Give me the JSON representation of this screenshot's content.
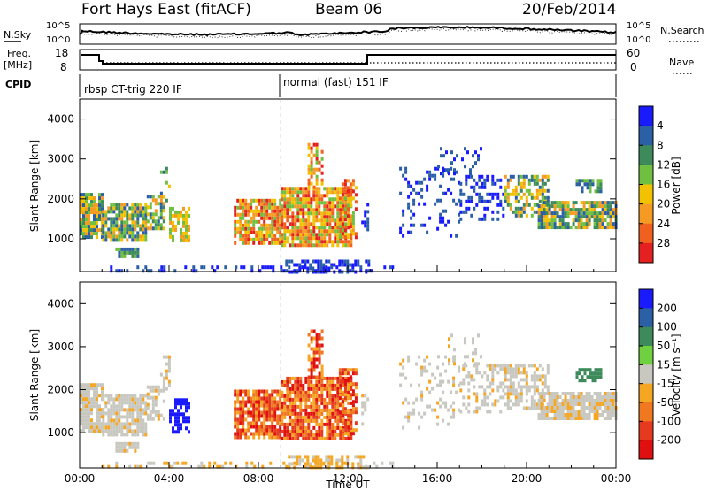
{
  "header": {
    "station": "Fort Hays East (fitACF)",
    "beam": "Beam 06",
    "date": "20/Feb/2014"
  },
  "noise_panel": {
    "left_label": "N.Sky",
    "left_ticks": [
      "10^5",
      "10^0"
    ],
    "right_label": "N.Search",
    "right_ticks": [
      "10^5",
      "10^0"
    ]
  },
  "freq_panel": {
    "left_label_1": "Freq.",
    "left_label_2": "[MHz]",
    "left_ticks": [
      "18",
      "8"
    ],
    "right_label": "Nave",
    "right_ticks": [
      "60",
      "0"
    ]
  },
  "cpid_panel": {
    "label": "CPID",
    "modes": [
      "rbsp CT-trig 220 IF",
      "normal (fast) 151 IF"
    ]
  },
  "chart_data": [
    {
      "type": "heatmap",
      "name": "power",
      "ylabel": "Slant Range [km]",
      "ylim": [
        180,
        4500
      ],
      "yticks": [
        1000,
        2000,
        3000,
        4000
      ],
      "xlim": [
        0,
        24
      ],
      "xticks": [
        "00:00",
        "04:00",
        "08:00",
        "12:00",
        "16:00",
        "20:00",
        "00:00"
      ],
      "colorbar": {
        "label": "Power [dB]",
        "ticks": [
          "4",
          "8",
          "12",
          "16",
          "20",
          "24",
          "28"
        ],
        "colors": [
          "#1a1aff",
          "#2b5fa6",
          "#3d8a5a",
          "#6fbf40",
          "#f2c200",
          "#f59a23",
          "#f0601e",
          "#e52020"
        ]
      },
      "mode_change_hour": 9.0
    },
    {
      "type": "heatmap",
      "name": "velocity",
      "ylabel": "Slant Range [km]",
      "ylim": [
        180,
        4500
      ],
      "yticks": [
        1000,
        2000,
        3000,
        4000
      ],
      "xlim": [
        0,
        24
      ],
      "xticks": [
        "00:00",
        "04:00",
        "08:00",
        "12:00",
        "16:00",
        "20:00",
        "00:00"
      ],
      "xlabel": "Time UT",
      "colorbar": {
        "label": "Velocity [m s⁻¹]",
        "ticks": [
          "200",
          "100",
          "50",
          "15",
          "-15",
          "-50",
          "-100",
          "-200"
        ],
        "colors": [
          "#1a1aff",
          "#2b5fa6",
          "#3d8a5a",
          "#6fd040",
          "#c8c8c0",
          "#f5a623",
          "#f07820",
          "#e53a1e",
          "#e01010"
        ]
      },
      "mode_change_hour": 9.0
    }
  ]
}
